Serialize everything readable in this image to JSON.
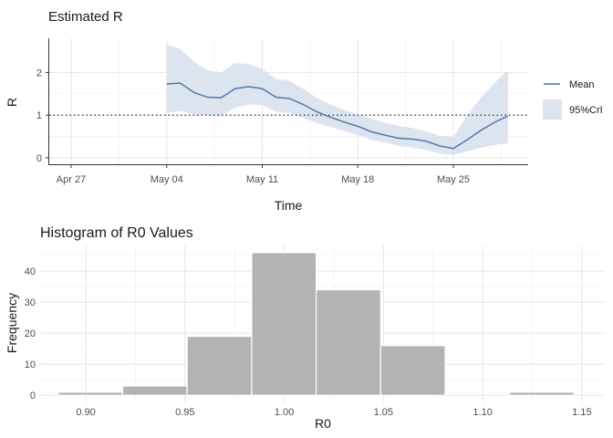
{
  "chart_data": [
    {
      "type": "line",
      "title": "Estimated R",
      "xlabel": "Time",
      "ylabel": "R",
      "x_tick_labels": [
        "Apr 27",
        "May 04",
        "May 11",
        "May 18",
        "May 25"
      ],
      "y_ticks": [
        0,
        1,
        2
      ],
      "ylim": [
        -0.15,
        2.8
      ],
      "reference_line": {
        "y": 1,
        "style": "dotted"
      },
      "legend": {
        "placement": "right",
        "entries": [
          "Mean",
          "95%CrI"
        ]
      },
      "x": [
        "2020-05-04",
        "2020-05-05",
        "2020-05-06",
        "2020-05-07",
        "2020-05-08",
        "2020-05-09",
        "2020-05-10",
        "2020-05-11",
        "2020-05-12",
        "2020-05-13",
        "2020-05-14",
        "2020-05-15",
        "2020-05-16",
        "2020-05-17",
        "2020-05-18",
        "2020-05-19",
        "2020-05-20",
        "2020-05-21",
        "2020-05-22",
        "2020-05-23",
        "2020-05-24",
        "2020-05-25",
        "2020-05-26",
        "2020-05-27",
        "2020-05-28",
        "2020-05-29"
      ],
      "series": [
        {
          "name": "Mean",
          "color": "#4a72a6",
          "values": [
            1.73,
            1.75,
            1.53,
            1.42,
            1.41,
            1.62,
            1.67,
            1.62,
            1.42,
            1.39,
            1.25,
            1.08,
            0.95,
            0.84,
            0.74,
            0.61,
            0.53,
            0.46,
            0.44,
            0.39,
            0.28,
            0.22,
            0.42,
            0.64,
            0.83,
            0.98
          ]
        },
        {
          "name": "95%CrI",
          "color": "#dbe4ef",
          "lower": [
            1.05,
            1.1,
            1.02,
            1.0,
            0.97,
            1.18,
            1.25,
            1.24,
            1.08,
            1.05,
            0.93,
            0.82,
            0.72,
            0.63,
            0.53,
            0.42,
            0.36,
            0.28,
            0.24,
            0.19,
            0.1,
            0.07,
            0.15,
            0.24,
            0.3,
            0.35
          ],
          "upper": [
            2.65,
            2.55,
            2.25,
            2.05,
            2.0,
            2.22,
            2.2,
            2.08,
            1.85,
            1.8,
            1.62,
            1.4,
            1.25,
            1.12,
            1.02,
            0.92,
            0.82,
            0.75,
            0.7,
            0.62,
            0.52,
            0.48,
            1.0,
            1.4,
            1.75,
            2.05
          ]
        }
      ],
      "grid": true
    },
    {
      "type": "bar",
      "title": "Histogram of R0 Values",
      "xlabel": "R0",
      "ylabel": "Frequency",
      "x_ticks": [
        0.9,
        0.95,
        1.0,
        1.05,
        1.1,
        1.15
      ],
      "x_tick_labels": [
        "0.90",
        "0.95",
        "1.00",
        "1.05",
        "1.10",
        "1.15"
      ],
      "y_ticks": [
        0,
        10,
        20,
        30,
        40
      ],
      "xlim": [
        0.877,
        1.162
      ],
      "ylim": [
        -2.3,
        48.3
      ],
      "bin_edges": [
        0.8861,
        0.9186,
        0.9511,
        0.9836,
        1.0161,
        1.0486,
        1.0811,
        1.1136,
        1.1461
      ],
      "values": [
        1,
        3,
        19,
        46,
        34,
        16,
        0,
        1
      ],
      "bar_color": "#b3b3b3",
      "grid": true
    }
  ]
}
